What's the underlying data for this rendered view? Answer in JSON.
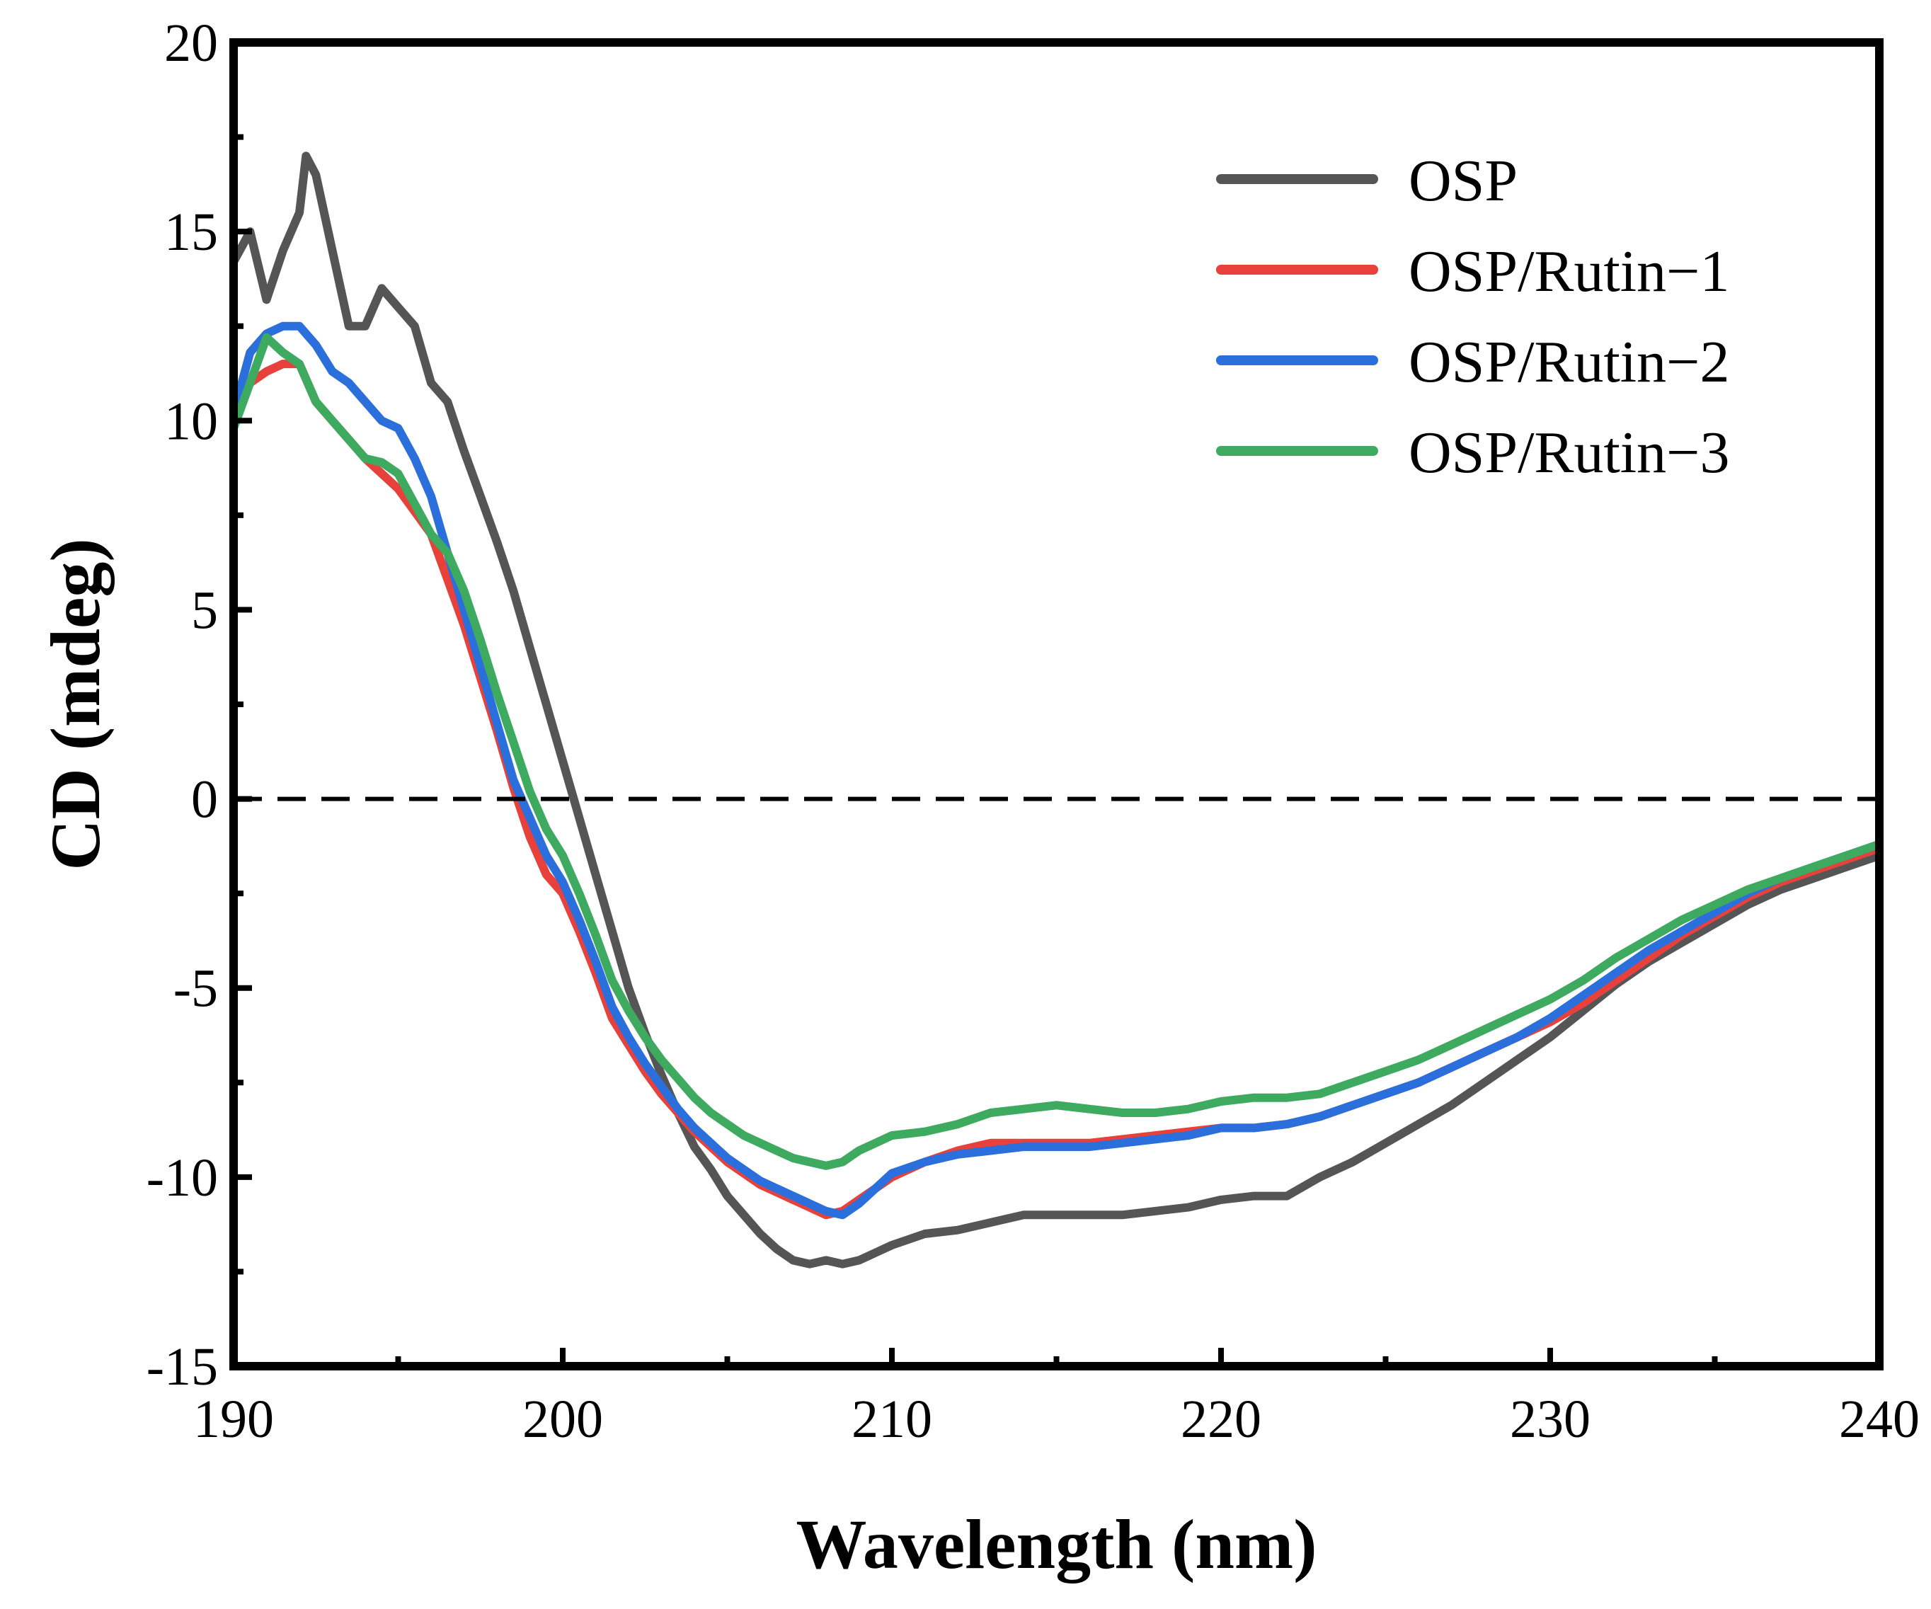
{
  "chart_data": {
    "type": "line",
    "title": "",
    "xlabel": "Wavelength (nm)",
    "ylabel": "CD (mdeg)",
    "xlim": [
      190,
      240
    ],
    "ylim": [
      -15,
      20
    ],
    "xticks": [
      190,
      200,
      210,
      220,
      230,
      240
    ],
    "yticks": [
      20,
      15,
      10,
      5,
      0,
      -5,
      -10,
      -15
    ],
    "xtick_labels": [
      "190",
      "200",
      "210",
      "220",
      "230",
      "240"
    ],
    "ytick_labels": [
      "20",
      "15",
      "10",
      "5",
      "0",
      "-5",
      "-10",
      "-15"
    ],
    "zero_line": {
      "y": 0,
      "style": "dashed"
    },
    "legend_position": "top-right",
    "series": [
      {
        "name": "OSP",
        "color": "#555555",
        "x": [
          190,
          190.5,
          191,
          191.5,
          192,
          192.2,
          192.5,
          193,
          193.5,
          194,
          194.5,
          195,
          195.5,
          196,
          196.5,
          197,
          197.5,
          198,
          198.5,
          199,
          199.5,
          200,
          200.5,
          201,
          201.5,
          202,
          202.5,
          203,
          203.5,
          204,
          204.5,
          205,
          205.5,
          206,
          206.5,
          207,
          207.5,
          208,
          208.5,
          209,
          209.5,
          210,
          211,
          212,
          213,
          214,
          215,
          216,
          217,
          218,
          219,
          220,
          221,
          222,
          223,
          224,
          225,
          226,
          227,
          228,
          229,
          230,
          231,
          232,
          233,
          234,
          235,
          236,
          237,
          238,
          239,
          240
        ],
        "values": [
          14.2,
          15.0,
          13.2,
          14.5,
          15.5,
          17.0,
          16.5,
          14.5,
          12.5,
          12.5,
          13.5,
          13.0,
          12.5,
          11.0,
          10.5,
          9.2,
          8.0,
          6.8,
          5.5,
          4.0,
          2.5,
          1.0,
          -0.5,
          -2.0,
          -3.5,
          -5.0,
          -6.2,
          -7.3,
          -8.3,
          -9.2,
          -9.8,
          -10.5,
          -11.0,
          -11.5,
          -11.9,
          -12.2,
          -12.3,
          -12.2,
          -12.3,
          -12.2,
          -12.0,
          -11.8,
          -11.5,
          -11.4,
          -11.2,
          -11.0,
          -11.0,
          -11.0,
          -11.0,
          -10.9,
          -10.8,
          -10.6,
          -10.5,
          -10.5,
          -10.0,
          -9.6,
          -9.1,
          -8.6,
          -8.1,
          -7.5,
          -6.9,
          -6.3,
          -5.6,
          -4.9,
          -4.3,
          -3.8,
          -3.3,
          -2.8,
          -2.4,
          -2.1,
          -1.8,
          -1.5
        ]
      },
      {
        "name": "OSP/Rutin−1",
        "color": "#e8403a",
        "x": [
          190,
          190.5,
          191,
          191.5,
          192,
          192.5,
          193,
          193.5,
          194,
          194.5,
          195,
          195.5,
          196,
          196.5,
          197,
          197.5,
          198,
          198.5,
          199,
          199.5,
          200,
          200.5,
          201,
          201.5,
          202,
          202.5,
          203,
          203.5,
          204,
          204.5,
          205,
          205.5,
          206,
          206.5,
          207,
          207.5,
          208,
          208.5,
          209,
          209.5,
          210,
          211,
          212,
          213,
          214,
          215,
          216,
          217,
          218,
          219,
          220,
          221,
          222,
          223,
          224,
          225,
          226,
          227,
          228,
          229,
          230,
          231,
          232,
          233,
          234,
          235,
          236,
          237,
          238,
          239,
          240
        ],
        "values": [
          10.0,
          11.0,
          11.3,
          11.5,
          11.5,
          10.5,
          10.0,
          9.5,
          9.0,
          8.6,
          8.2,
          7.6,
          7.0,
          5.8,
          4.6,
          3.2,
          1.8,
          0.3,
          -1.0,
          -2.0,
          -2.5,
          -3.5,
          -4.6,
          -5.8,
          -6.5,
          -7.2,
          -7.8,
          -8.3,
          -8.8,
          -9.2,
          -9.6,
          -9.9,
          -10.2,
          -10.4,
          -10.6,
          -10.8,
          -11.0,
          -10.9,
          -10.6,
          -10.3,
          -10.0,
          -9.6,
          -9.3,
          -9.1,
          -9.1,
          -9.1,
          -9.1,
          -9.0,
          -8.9,
          -8.8,
          -8.7,
          -8.7,
          -8.6,
          -8.4,
          -8.1,
          -7.8,
          -7.5,
          -7.1,
          -6.7,
          -6.3,
          -5.9,
          -5.4,
          -4.8,
          -4.2,
          -3.6,
          -3.1,
          -2.6,
          -2.2,
          -1.9,
          -1.6,
          -1.3
        ]
      },
      {
        "name": "OSP/Rutin−2",
        "color": "#2a6fdb",
        "x": [
          190,
          190.5,
          191,
          191.5,
          192,
          192.5,
          193,
          193.5,
          194,
          194.5,
          195,
          195.5,
          196,
          196.5,
          197,
          197.5,
          198,
          198.5,
          199,
          199.5,
          200,
          200.5,
          201,
          201.5,
          202,
          202.5,
          203,
          203.5,
          204,
          204.5,
          205,
          205.5,
          206,
          206.5,
          207,
          207.5,
          208,
          208.5,
          209,
          209.5,
          210,
          211,
          212,
          213,
          214,
          215,
          216,
          217,
          218,
          219,
          220,
          221,
          222,
          223,
          224,
          225,
          226,
          227,
          228,
          229,
          230,
          231,
          232,
          233,
          234,
          235,
          236,
          237,
          238,
          239,
          240
        ],
        "values": [
          10.2,
          11.8,
          12.3,
          12.5,
          12.5,
          12.0,
          11.3,
          11.0,
          10.5,
          10.0,
          9.8,
          9.0,
          8.0,
          6.5,
          5.0,
          3.5,
          2.0,
          0.5,
          -0.5,
          -1.5,
          -2.2,
          -3.2,
          -4.3,
          -5.5,
          -6.3,
          -7.0,
          -7.6,
          -8.2,
          -8.7,
          -9.1,
          -9.5,
          -9.8,
          -10.1,
          -10.3,
          -10.5,
          -10.7,
          -10.9,
          -11.0,
          -10.7,
          -10.3,
          -9.9,
          -9.6,
          -9.4,
          -9.3,
          -9.2,
          -9.2,
          -9.2,
          -9.1,
          -9.0,
          -8.9,
          -8.7,
          -8.7,
          -8.6,
          -8.4,
          -8.1,
          -7.8,
          -7.5,
          -7.1,
          -6.7,
          -6.3,
          -5.8,
          -5.2,
          -4.6,
          -4.0,
          -3.5,
          -3.0,
          -2.5,
          -2.1,
          -1.8,
          -1.5,
          -1.2
        ]
      },
      {
        "name": "OSP/Rutin−3",
        "color": "#3daa5f",
        "x": [
          190,
          190.5,
          191,
          191.5,
          192,
          192.5,
          193,
          193.5,
          194,
          194.5,
          195,
          195.5,
          196,
          196.5,
          197,
          197.5,
          198,
          198.5,
          199,
          199.5,
          200,
          200.5,
          201,
          201.5,
          202,
          202.5,
          203,
          203.5,
          204,
          204.5,
          205,
          205.5,
          206,
          206.5,
          207,
          207.5,
          208,
          208.5,
          209,
          209.5,
          210,
          211,
          212,
          213,
          214,
          215,
          216,
          217,
          218,
          219,
          220,
          221,
          222,
          223,
          224,
          225,
          226,
          227,
          228,
          229,
          230,
          231,
          232,
          233,
          234,
          235,
          236,
          237,
          238,
          239,
          240
        ],
        "values": [
          9.8,
          11.0,
          12.2,
          11.8,
          11.5,
          10.5,
          10.0,
          9.5,
          9.0,
          8.9,
          8.6,
          7.8,
          7.0,
          6.5,
          5.5,
          4.2,
          2.8,
          1.5,
          0.2,
          -0.8,
          -1.5,
          -2.5,
          -3.6,
          -4.8,
          -5.6,
          -6.3,
          -6.9,
          -7.4,
          -7.9,
          -8.3,
          -8.6,
          -8.9,
          -9.1,
          -9.3,
          -9.5,
          -9.6,
          -9.7,
          -9.6,
          -9.3,
          -9.1,
          -8.9,
          -8.8,
          -8.6,
          -8.3,
          -8.2,
          -8.1,
          -8.2,
          -8.3,
          -8.3,
          -8.2,
          -8.0,
          -7.9,
          -7.9,
          -7.8,
          -7.5,
          -7.2,
          -6.9,
          -6.5,
          -6.1,
          -5.7,
          -5.3,
          -4.8,
          -4.2,
          -3.7,
          -3.2,
          -2.8,
          -2.4,
          -2.1,
          -1.8,
          -1.5,
          -1.2
        ]
      }
    ]
  }
}
